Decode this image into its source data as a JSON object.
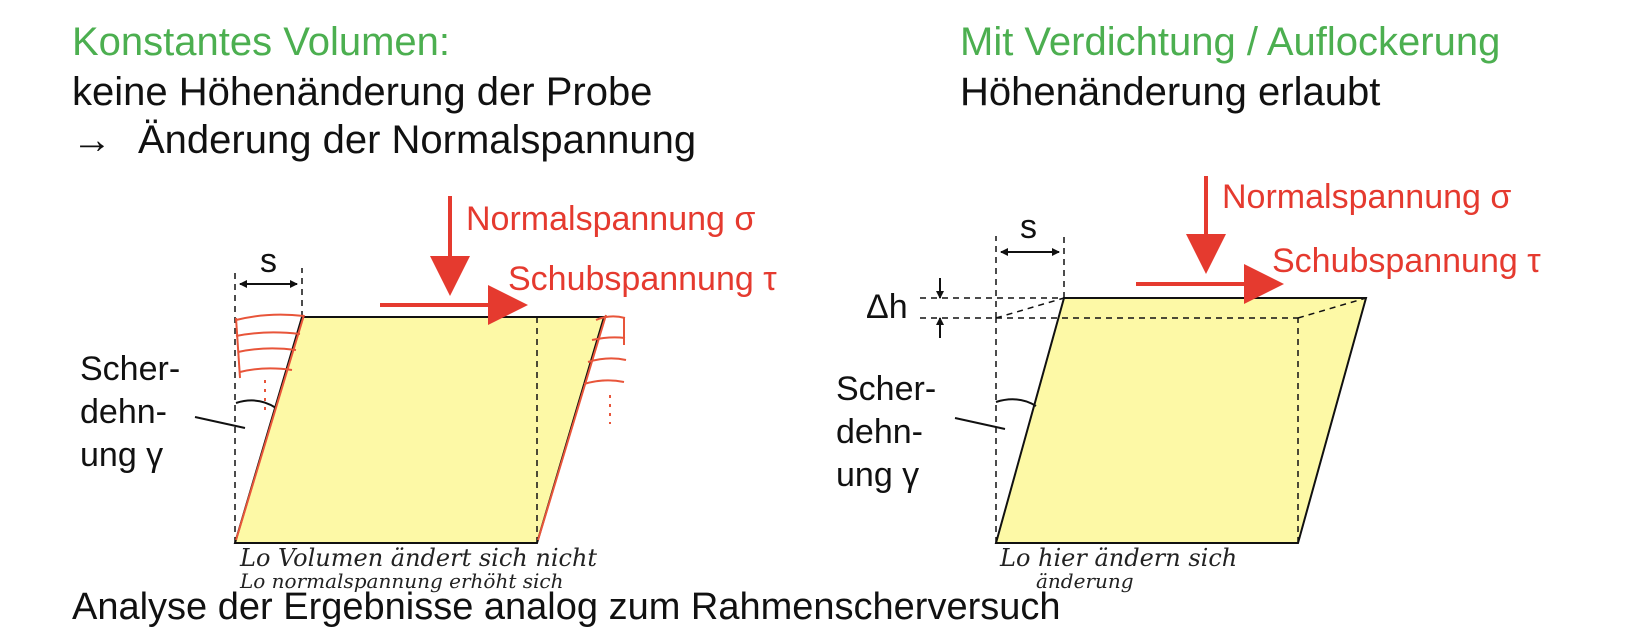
{
  "left": {
    "heading": "Konstantes Volumen:",
    "line1": "keine Höhenänderung der Probe",
    "line2_arrow": "→",
    "line2": "Änderung der Normalspannung",
    "normal_label": "Normalspannung σ",
    "shear_label": "Schubspannung τ",
    "s_label": "s",
    "strain_label": [
      "Scher-",
      "dehn-",
      "ung γ"
    ],
    "handwritten": [
      "Lo Volumen ändert sich nicht",
      "Lo normalspannung erhöht sich"
    ]
  },
  "right": {
    "heading": "Mit Verdichtung / Auflockerung",
    "line1": "Höhenänderung erlaubt",
    "normal_label": "Normalspannung σ",
    "shear_label": "Schubspannung τ",
    "s_label": "s",
    "dh_label": "Δh",
    "strain_label": [
      "Scher-",
      "dehn-",
      "ung γ"
    ],
    "handwritten": [
      "Lo hier ändern sich",
      "änderung"
    ]
  },
  "footer": "Analyse der Ergebnisse analog zum Rahmenscherversuch",
  "colors": {
    "heading": "#4caf50",
    "arrow": "#e53a2f",
    "sample": "#fdf9a6",
    "handwriting_red": "#e8553a"
  }
}
